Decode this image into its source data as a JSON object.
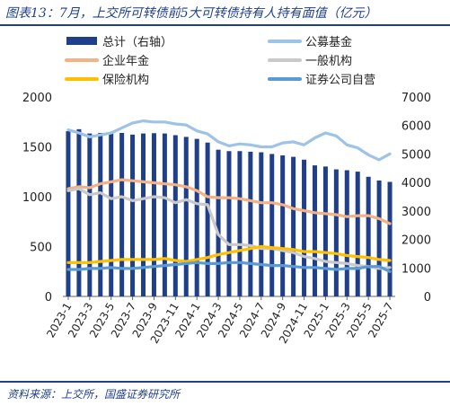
{
  "title": "图表13：7月，上交所可转债前5大可转债持有人持有面值（亿元）",
  "source": "资料来源：上交所，国盛证券研究所",
  "colors": {
    "total_bar": "#1f3f8a",
    "public_fund": "#9dc3e6",
    "enterprise_annuity": "#f4b183",
    "general_corp": "#c9c9c9",
    "insurance": "#ffc000",
    "securities_proprietary": "#5b9bd5"
  },
  "chart_data": {
    "type": "bar+line",
    "categories": [
      "2023-1",
      "2023-2",
      "2023-3",
      "2023-4",
      "2023-5",
      "2023-6",
      "2023-7",
      "2023-8",
      "2023-9",
      "2023-10",
      "2023-11",
      "2023-12",
      "2024-1",
      "2024-2",
      "2024-3",
      "2024-4",
      "2024-5",
      "2024-6",
      "2024-7",
      "2024-8",
      "2024-9",
      "2024-10",
      "2024-11",
      "2024-12",
      "2025-1",
      "2025-2",
      "2025-3",
      "2025-4",
      "2025-5",
      "2025-6",
      "2025-7"
    ],
    "x_tick_labels": [
      "2023-1",
      "2023-3",
      "2023-5",
      "2023-7",
      "2023-9",
      "2023-11",
      "2024-1",
      "2024-3",
      "2024-5",
      "2024-7",
      "2024-9",
      "2024-11",
      "2025-1",
      "2025-3",
      "2025-5",
      "2025-7"
    ],
    "y_left": {
      "min": 0,
      "max": 2000,
      "ticks": [
        0,
        500,
        1000,
        1500,
        2000
      ]
    },
    "y_right": {
      "min": 0,
      "max": 7000,
      "ticks": [
        0,
        1000,
        2000,
        3000,
        4000,
        5000,
        6000,
        7000
      ]
    },
    "bar_series": {
      "name": "总计（右轴）",
      "axis": "right",
      "values": [
        5800,
        5870,
        5720,
        5740,
        5770,
        5740,
        5680,
        5720,
        5730,
        5720,
        5660,
        5600,
        5530,
        5400,
        5150,
        5100,
        5100,
        5080,
        5060,
        5000,
        4950,
        4900,
        4800,
        4600,
        4560,
        4460,
        4430,
        4380,
        4200,
        4070,
        4020
      ]
    },
    "line_series": [
      {
        "name": "公募基金",
        "axis": "left",
        "color": "#9dc3e6",
        "values": [
          1670,
          1640,
          1600,
          1620,
          1640,
          1690,
          1740,
          1760,
          1750,
          1750,
          1730,
          1720,
          1660,
          1630,
          1550,
          1510,
          1530,
          1520,
          1500,
          1500,
          1540,
          1550,
          1520,
          1590,
          1640,
          1610,
          1520,
          1490,
          1420,
          1370,
          1430
        ]
      },
      {
        "name": "企业年金",
        "axis": "left",
        "color": "#f4b183",
        "values": [
          1080,
          1100,
          1090,
          1130,
          1150,
          1170,
          1160,
          1150,
          1140,
          1130,
          1120,
          1100,
          1060,
          1000,
          990,
          990,
          980,
          960,
          940,
          940,
          920,
          880,
          860,
          840,
          830,
          820,
          800,
          810,
          810,
          780,
          730
        ]
      },
      {
        "name": "一般机构",
        "axis": "left",
        "color": "#c9c9c9",
        "values": [
          1060,
          1080,
          1020,
          1040,
          980,
          1000,
          960,
          980,
          1000,
          990,
          940,
          970,
          930,
          920,
          620,
          520,
          520,
          510,
          480,
          480,
          460,
          440,
          400,
          380,
          350,
          340,
          330,
          310,
          300,
          280,
          290
        ]
      },
      {
        "name": "保险机构",
        "axis": "left",
        "color": "#ffc000",
        "values": [
          340,
          340,
          340,
          350,
          360,
          370,
          370,
          370,
          370,
          380,
          360,
          350,
          370,
          390,
          420,
          440,
          460,
          480,
          500,
          490,
          480,
          470,
          450,
          450,
          440,
          430,
          410,
          400,
          390,
          370,
          360
        ]
      },
      {
        "name": "证券公司自营",
        "axis": "left",
        "color": "#5b9bd5",
        "values": [
          270,
          270,
          280,
          280,
          290,
          280,
          280,
          290,
          300,
          310,
          320,
          330,
          340,
          330,
          330,
          340,
          340,
          330,
          320,
          310,
          310,
          300,
          290,
          290,
          280,
          270,
          280,
          280,
          300,
          300,
          250
        ]
      }
    ],
    "legend": {
      "placement": "top",
      "entries": [
        {
          "label": "总计（右轴）",
          "kind": "bar",
          "color": "#1f3f8a"
        },
        {
          "label": "公募基金",
          "kind": "line",
          "color": "#9dc3e6"
        },
        {
          "label": "企业年金",
          "kind": "line",
          "color": "#f4b183"
        },
        {
          "label": "一般机构",
          "kind": "line",
          "color": "#c9c9c9"
        },
        {
          "label": "保险机构",
          "kind": "line",
          "color": "#ffc000"
        },
        {
          "label": "证券公司自营",
          "kind": "line",
          "color": "#5b9bd5"
        }
      ]
    },
    "grid": false
  }
}
